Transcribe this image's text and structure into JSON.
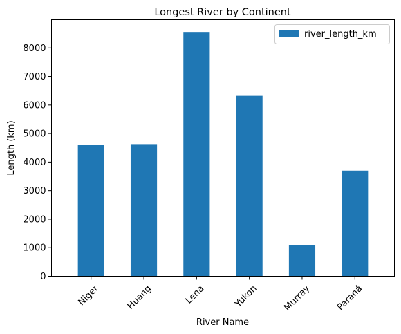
{
  "chart_data": {
    "type": "bar",
    "title": "Longest River by Continent",
    "xlabel": "River Name",
    "ylabel": "Length (km)",
    "categories": [
      "Niger",
      "Huang",
      "Lena",
      "Yukon",
      "Murray",
      "Paraná"
    ],
    "series": [
      {
        "name": "river_length_km",
        "values": [
          4600,
          4630,
          8560,
          6320,
          1100,
          3700
        ],
        "color": "#1f77b4"
      }
    ],
    "ylim": [
      0,
      8988
    ],
    "yticks": [
      0,
      1000,
      2000,
      3000,
      4000,
      5000,
      6000,
      7000,
      8000
    ],
    "ytick_labels": [
      "0",
      "1000",
      "2000",
      "3000",
      "4000",
      "5000",
      "6000",
      "7000",
      "8000"
    ],
    "grid": false,
    "legend_position": "top-right",
    "xtick_rotation": 45
  }
}
